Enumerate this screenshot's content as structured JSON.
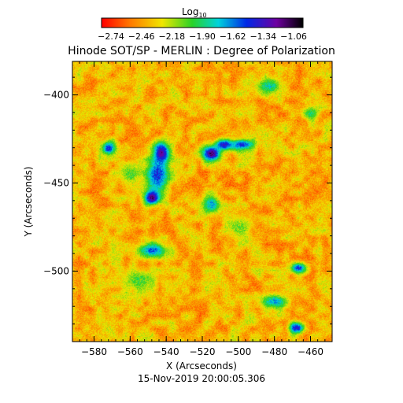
{
  "chart_data": {
    "type": "heatmap",
    "title": "Hinode SOT/SP - MERLIN : Degree of Polarization",
    "colorbar": {
      "label_base": "Log",
      "label_sub": "10",
      "ticks": [
        "-2.74",
        "-2.46",
        "-2.18",
        "-1.90",
        "-1.62",
        "-1.34",
        "-1.06"
      ],
      "range": [
        -2.74,
        -1.06
      ]
    },
    "xlabel": "X (Arcseconds)",
    "ylabel": "Y (Arcseconds)",
    "xlim": [
      -592,
      -448
    ],
    "ylim": [
      -540,
      -381
    ],
    "x_ticks": [
      -580,
      -560,
      -540,
      -520,
      -500,
      -480,
      -460
    ],
    "y_ticks": [
      -400,
      -450,
      -500
    ],
    "x_tick_labels": [
      "-580",
      "-560",
      "-540",
      "-520",
      "-500",
      "-480",
      "-460"
    ],
    "y_tick_labels": [
      "-400",
      "-450",
      "-500"
    ],
    "background_level": -2.35,
    "features": [
      {
        "x": -543,
        "y": -433,
        "peak": -1.2,
        "sx": 4,
        "sy": 6
      },
      {
        "x": -548,
        "y": -458,
        "peak": -1.15,
        "sx": 4,
        "sy": 4
      },
      {
        "x": -545,
        "y": -445,
        "peak": -1.5,
        "sx": 6,
        "sy": 10
      },
      {
        "x": -515,
        "y": -433,
        "peak": -1.2,
        "sx": 5,
        "sy": 4
      },
      {
        "x": -508,
        "y": -428,
        "peak": -1.4,
        "sx": 5,
        "sy": 3
      },
      {
        "x": -498,
        "y": -428,
        "peak": -1.5,
        "sx": 6,
        "sy": 3
      },
      {
        "x": -572,
        "y": -430,
        "peak": -1.5,
        "sx": 4,
        "sy": 4
      },
      {
        "x": -548,
        "y": -488,
        "peak": -1.6,
        "sx": 8,
        "sy": 4
      },
      {
        "x": -515,
        "y": -462,
        "peak": -1.7,
        "sx": 4,
        "sy": 5
      },
      {
        "x": -467,
        "y": -498,
        "peak": -1.5,
        "sx": 4,
        "sy": 3
      },
      {
        "x": -468,
        "y": -532,
        "peak": -1.4,
        "sx": 4,
        "sy": 3
      },
      {
        "x": -480,
        "y": -517,
        "peak": -1.7,
        "sx": 7,
        "sy": 4
      },
      {
        "x": -483,
        "y": -395,
        "peak": -1.8,
        "sx": 6,
        "sy": 4
      },
      {
        "x": -460,
        "y": -410,
        "peak": -1.9,
        "sx": 4,
        "sy": 4
      },
      {
        "x": -555,
        "y": -505,
        "peak": -2.0,
        "sx": 10,
        "sy": 6
      },
      {
        "x": -560,
        "y": -445,
        "peak": -2.0,
        "sx": 5,
        "sy": 5
      },
      {
        "x": -500,
        "y": -475,
        "peak": -2.05,
        "sx": 6,
        "sy": 5
      }
    ]
  },
  "footer": {
    "timestamp": "15-Nov-2019 20:00:05.306"
  }
}
